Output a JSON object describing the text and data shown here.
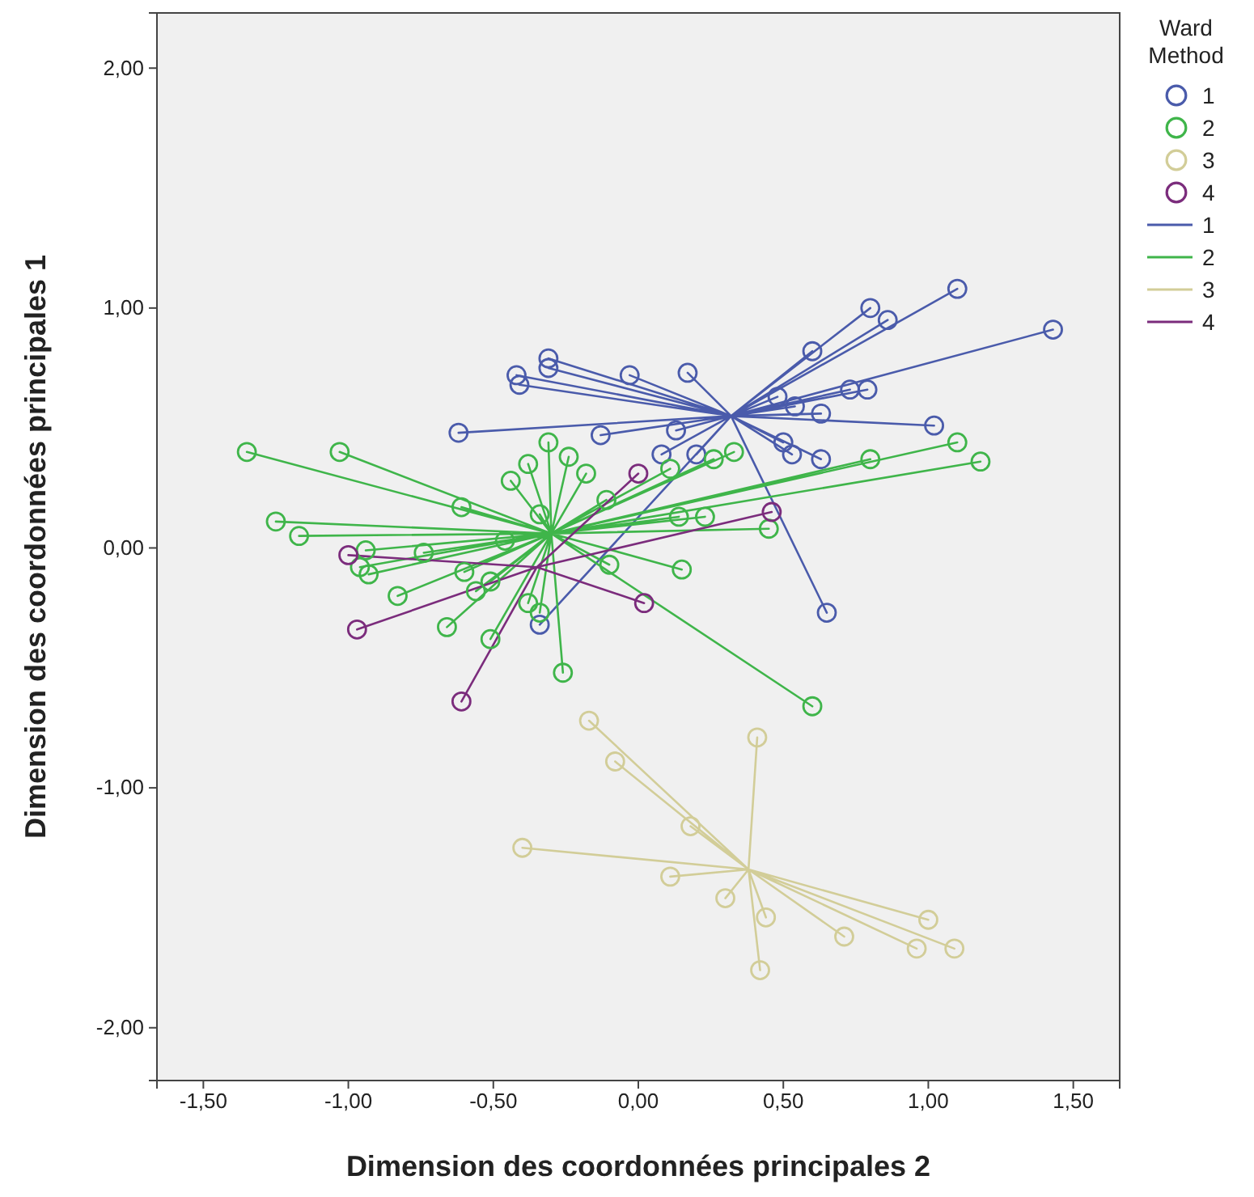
{
  "chart_data": {
    "type": "scatter",
    "xlabel": "Dimension des coordonnées principales 2",
    "ylabel": "Dimension des coordonnées principales 1",
    "legend_title": "Ward Method",
    "legend": "right",
    "grid": false,
    "marker": "circle",
    "xlim": [
      -1.66,
      1.66
    ],
    "ylim": [
      -2.22,
      2.23
    ],
    "xticks": [
      {
        "value": -1.5,
        "label": "-1,50"
      },
      {
        "value": -1,
        "label": "-1,00"
      },
      {
        "value": -0.5,
        "label": "-0,50"
      },
      {
        "value": 0,
        "label": "0,00"
      },
      {
        "value": 0.5,
        "label": "0,50"
      },
      {
        "value": 1,
        "label": "1,00"
      },
      {
        "value": 1.5,
        "label": "1,50"
      }
    ],
    "yticks": [
      {
        "value": -2,
        "label": "-2,00"
      },
      {
        "value": -1,
        "label": "-1,00"
      },
      {
        "value": 0,
        "label": "0,00"
      },
      {
        "value": 1,
        "label": "1,00"
      },
      {
        "value": 2,
        "label": "2,00"
      }
    ],
    "series": [
      {
        "name": "1",
        "color": "#4a5bab",
        "x": [
          1.1,
          0.8,
          0.86,
          1.43,
          0.6,
          0.73,
          0.79,
          0.48,
          0.54,
          0.63,
          1.02,
          0.5,
          0.53,
          0.63,
          0.65,
          0.13,
          0.17,
          -0.03,
          0.08,
          0.2,
          -0.31,
          -0.31,
          -0.42,
          -0.41,
          -0.62,
          -0.13,
          -0.34
        ],
        "values": [
          1.08,
          1.0,
          0.95,
          0.91,
          0.82,
          0.66,
          0.66,
          0.63,
          0.59,
          0.56,
          0.51,
          0.44,
          0.39,
          0.37,
          -0.27,
          0.49,
          0.73,
          0.72,
          0.39,
          0.39,
          0.79,
          0.75,
          0.72,
          0.68,
          0.48,
          0.47,
          -0.32
        ]
      },
      {
        "name": "2",
        "color": "#3fb54a",
        "x": [
          -1.35,
          -1.03,
          -0.31,
          -0.38,
          -0.24,
          -0.18,
          -0.44,
          -0.61,
          -1.25,
          -1.17,
          -0.34,
          -0.11,
          -0.94,
          -0.96,
          -0.93,
          -0.74,
          -0.6,
          -0.46,
          -0.1,
          -0.83,
          -0.56,
          -0.51,
          -0.38,
          -0.34,
          -0.66,
          -0.51,
          -0.26,
          1.1,
          1.18,
          0.8,
          0.33,
          0.26,
          0.11,
          0.14,
          0.23,
          0.45,
          0.15,
          0.6
        ],
        "values": [
          0.4,
          0.4,
          0.44,
          0.35,
          0.38,
          0.31,
          0.28,
          0.17,
          0.11,
          0.05,
          0.14,
          0.2,
          -0.01,
          -0.08,
          -0.11,
          -0.02,
          -0.1,
          0.03,
          -0.07,
          -0.2,
          -0.18,
          -0.14,
          -0.23,
          -0.27,
          -0.33,
          -0.38,
          -0.52,
          0.44,
          0.36,
          0.37,
          0.4,
          0.37,
          0.33,
          0.13,
          0.13,
          0.08,
          -0.09,
          -0.66
        ]
      },
      {
        "name": "3",
        "color": "#d2cd98",
        "x": [
          -0.17,
          0.41,
          -0.08,
          0.18,
          -0.4,
          0.11,
          0.3,
          0.44,
          1.0,
          0.71,
          0.96,
          1.09,
          0.42
        ],
        "values": [
          -0.72,
          -0.79,
          -0.89,
          -1.16,
          -1.25,
          -1.37,
          -1.46,
          -1.54,
          -1.55,
          -1.62,
          -1.67,
          -1.67,
          -1.76
        ]
      },
      {
        "name": "4",
        "color": "#7b2c7c",
        "x": [
          0.0,
          -1.0,
          -0.97,
          -0.61,
          0.02,
          0.46
        ],
        "values": [
          0.31,
          -0.03,
          -0.34,
          -0.64,
          -0.23,
          0.15
        ]
      },
      {
        "name": "1",
        "type": "line",
        "marker": "none",
        "color": "#4a5bab",
        "x": [
          0.32,
          1.1,
          0.32,
          0.8,
          0.32,
          0.86,
          0.32,
          1.43,
          0.32,
          0.6,
          0.32,
          0.73,
          0.32,
          0.79,
          0.32,
          0.48,
          0.32,
          0.54,
          0.32,
          0.63,
          0.32,
          1.02,
          0.32,
          0.5,
          0.32,
          0.53,
          0.32,
          0.63,
          0.32,
          0.65,
          0.32,
          0.13,
          0.32,
          0.17,
          0.32,
          -0.03,
          0.32,
          0.08,
          0.32,
          0.2,
          0.32,
          -0.31,
          0.32,
          -0.31,
          0.32,
          -0.42,
          0.32,
          -0.41,
          0.32,
          -0.62,
          0.32,
          -0.13,
          0.32,
          -0.34
        ],
        "values": [
          0.55,
          1.08,
          0.55,
          1.0,
          0.55,
          0.95,
          0.55,
          0.91,
          0.55,
          0.82,
          0.55,
          0.66,
          0.55,
          0.66,
          0.55,
          0.63,
          0.55,
          0.59,
          0.55,
          0.56,
          0.55,
          0.51,
          0.55,
          0.44,
          0.55,
          0.39,
          0.55,
          0.37,
          0.55,
          -0.27,
          0.55,
          0.49,
          0.55,
          0.73,
          0.55,
          0.72,
          0.55,
          0.39,
          0.55,
          0.39,
          0.55,
          0.79,
          0.55,
          0.75,
          0.55,
          0.72,
          0.55,
          0.68,
          0.55,
          0.48,
          0.55,
          0.47,
          0.55,
          -0.32
        ]
      },
      {
        "name": "2",
        "type": "line",
        "marker": "none",
        "color": "#3fb54a",
        "x": [
          -0.3,
          -1.35,
          -0.3,
          -1.03,
          -0.3,
          -0.31,
          -0.3,
          -0.38,
          -0.3,
          -0.24,
          -0.3,
          -0.18,
          -0.3,
          -0.44,
          -0.3,
          -0.61,
          -0.3,
          -1.25,
          -0.3,
          -1.17,
          -0.3,
          -0.34,
          -0.3,
          -0.11,
          -0.3,
          -0.94,
          -0.3,
          -0.96,
          -0.3,
          -0.93,
          -0.3,
          -0.74,
          -0.3,
          -0.6,
          -0.3,
          -0.46,
          -0.3,
          -0.1,
          -0.3,
          -0.83,
          -0.3,
          -0.56,
          -0.3,
          -0.51,
          -0.3,
          -0.38,
          -0.3,
          -0.34,
          -0.3,
          -0.66,
          -0.3,
          -0.51,
          -0.3,
          -0.26,
          -0.3,
          1.1,
          -0.3,
          1.18,
          -0.3,
          0.8,
          -0.3,
          0.33,
          -0.3,
          0.26,
          -0.3,
          0.11,
          -0.3,
          0.14,
          -0.3,
          0.23,
          -0.3,
          0.45,
          -0.3,
          0.15,
          -0.3,
          0.6
        ],
        "values": [
          0.06,
          0.4,
          0.06,
          0.4,
          0.06,
          0.44,
          0.06,
          0.35,
          0.06,
          0.38,
          0.06,
          0.31,
          0.06,
          0.28,
          0.06,
          0.17,
          0.06,
          0.11,
          0.06,
          0.05,
          0.06,
          0.14,
          0.06,
          0.2,
          0.06,
          -0.01,
          0.06,
          -0.08,
          0.06,
          -0.11,
          0.06,
          -0.02,
          0.06,
          -0.1,
          0.06,
          0.03,
          0.06,
          -0.07,
          0.06,
          -0.2,
          0.06,
          -0.18,
          0.06,
          -0.14,
          0.06,
          -0.23,
          0.06,
          -0.27,
          0.06,
          -0.33,
          0.06,
          -0.38,
          0.06,
          -0.52,
          0.06,
          0.44,
          0.06,
          0.36,
          0.06,
          0.37,
          0.06,
          0.4,
          0.06,
          0.37,
          0.06,
          0.33,
          0.06,
          0.13,
          0.06,
          0.13,
          0.06,
          0.08,
          0.06,
          -0.09,
          0.06,
          -0.66
        ]
      },
      {
        "name": "3",
        "type": "line",
        "marker": "none",
        "color": "#d2cd98",
        "x": [
          0.38,
          -0.17,
          0.38,
          0.41,
          0.38,
          -0.08,
          0.38,
          0.18,
          0.38,
          -0.4,
          0.38,
          0.11,
          0.38,
          0.3,
          0.38,
          0.44,
          0.38,
          1.0,
          0.38,
          0.71,
          0.38,
          0.96,
          0.38,
          1.09,
          0.38,
          0.42
        ],
        "values": [
          -1.34,
          -0.72,
          -1.34,
          -0.79,
          -1.34,
          -0.89,
          -1.34,
          -1.16,
          -1.34,
          -1.25,
          -1.34,
          -1.37,
          -1.34,
          -1.46,
          -1.34,
          -1.54,
          -1.34,
          -1.55,
          -1.34,
          -1.62,
          -1.34,
          -1.67,
          -1.34,
          -1.67,
          -1.34,
          -1.76
        ]
      },
      {
        "name": "4",
        "type": "line",
        "marker": "none",
        "color": "#7b2c7c",
        "x": [
          -0.35,
          0.0,
          -0.35,
          -1.0,
          -0.35,
          -0.97,
          -0.35,
          -0.61,
          -0.35,
          0.02,
          -0.35,
          0.46
        ],
        "values": [
          -0.08,
          0.31,
          -0.08,
          -0.03,
          -0.08,
          -0.34,
          -0.08,
          -0.64,
          -0.08,
          -0.23,
          -0.08,
          0.15
        ]
      }
    ]
  }
}
